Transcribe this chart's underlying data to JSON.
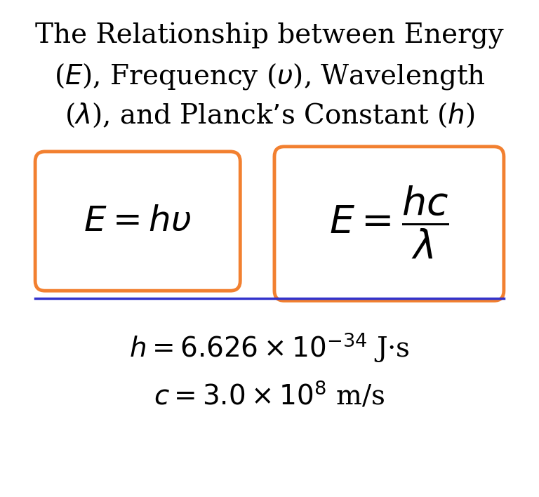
{
  "title_line1": "The Relationship between Energy",
  "title_line2": "($E$), Frequency ($\\upsilon$), Wavelength",
  "title_line3": "($\\lambda$), and Planck’s Constant ($h$)",
  "formula1": "$E=h\\upsilon$",
  "formula2": "$E = \\dfrac{hc}{\\lambda}$",
  "constant_h": "$h = 6.626 \\times 10^{-34}$ J·s",
  "constant_c": "$c = 3.0 \\times 10^{8}$ m/s",
  "box_color": "#F28030",
  "line_color": "#3333CC",
  "text_color": "#000000",
  "bg_color": "#FFFFFF",
  "title_fontsize": 28,
  "formula_fontsize": 36,
  "constant_fontsize": 28
}
